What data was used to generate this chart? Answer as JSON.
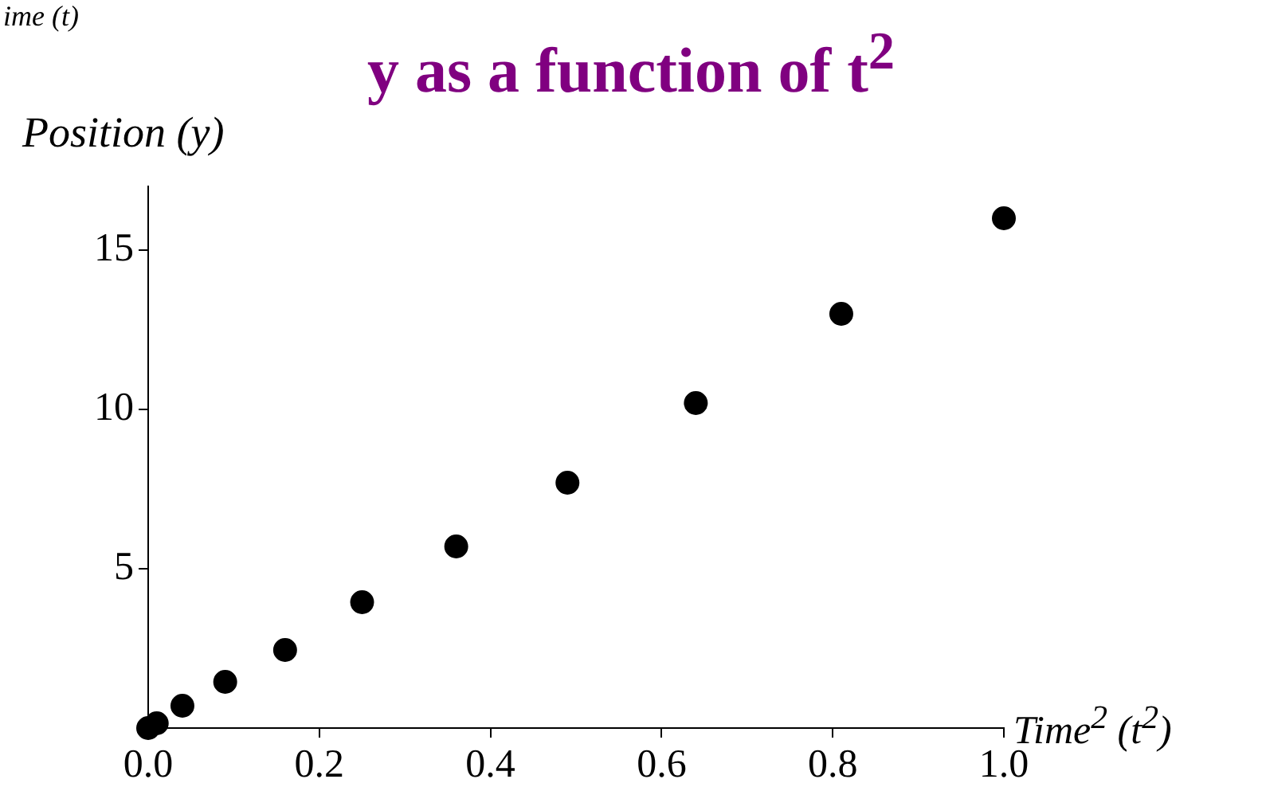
{
  "chart_data": {
    "type": "scatter",
    "title": "y as a function of t$^{2}$",
    "xlabel": "Time$^{2}$ (t$^{2}$)",
    "ylabel": "Position (y)",
    "annotations": [
      "ime (t)"
    ],
    "x": [
      0,
      0.01,
      0.04,
      0.09,
      0.16,
      0.25,
      0.36,
      0.49,
      0.64,
      0.81,
      1.0
    ],
    "series": [
      {
        "color": "#000000",
        "values": [
          0,
          0.15,
          0.7,
          1.45,
          2.45,
          3.95,
          5.7,
          7.7,
          10.2,
          13.0,
          16.0
        ]
      }
    ],
    "xlim": [
      0,
      1.0
    ],
    "ylim": [
      0,
      17
    ],
    "xticks": [
      {
        "value": 0,
        "label": "0.0"
      },
      {
        "value": 0.2,
        "label": "0.2"
      },
      {
        "value": 0.4,
        "label": "0.4"
      },
      {
        "value": 0.6,
        "label": "0.6"
      },
      {
        "value": 0.8,
        "label": "0.8"
      },
      {
        "value": 1.0,
        "label": "1.0"
      }
    ],
    "yticks": [
      {
        "value": 0,
        "label": null
      },
      5,
      10,
      15
    ],
    "grid": false,
    "legend": false,
    "marker": "circle"
  }
}
